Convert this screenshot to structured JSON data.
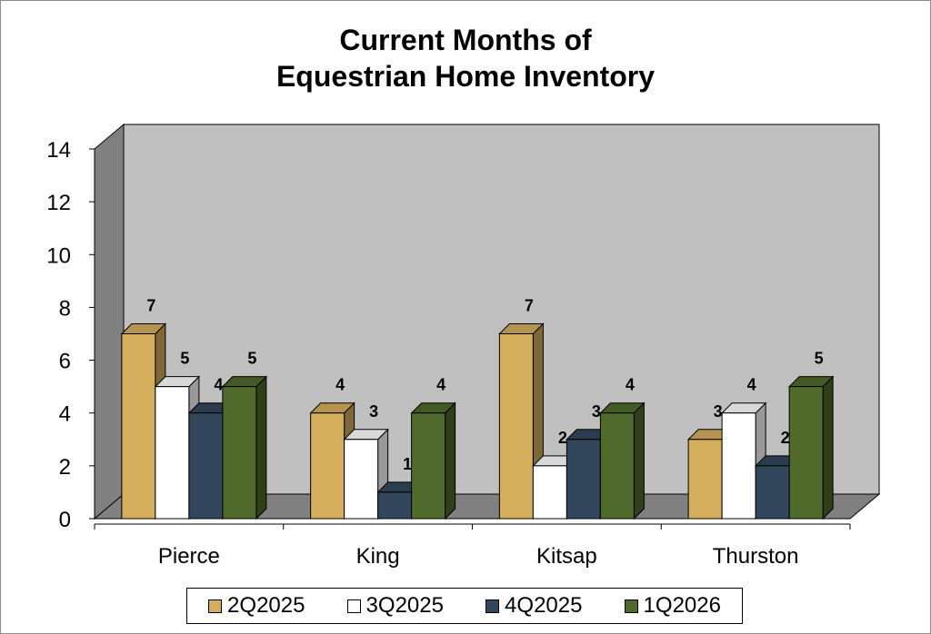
{
  "chart_data": {
    "type": "bar",
    "title_lines": [
      "Current Months of",
      "Equestrian Home Inventory"
    ],
    "categories": [
      "Pierce",
      "King",
      "Kitsap",
      "Thurston"
    ],
    "series": [
      {
        "name": "2Q2025",
        "values": [
          7,
          4,
          7,
          3
        ],
        "color": "#d4ae5c"
      },
      {
        "name": "3Q2025",
        "values": [
          5,
          3,
          2,
          4
        ],
        "color": "#ffffff"
      },
      {
        "name": "4Q2025",
        "values": [
          4,
          1,
          3,
          2
        ],
        "color": "#32475c"
      },
      {
        "name": "1Q2026",
        "values": [
          5,
          4,
          4,
          5
        ],
        "color": "#4f6a2a"
      }
    ],
    "ylim": [
      0,
      14
    ],
    "yticks": [
      "0",
      "2",
      "4",
      "6",
      "8",
      "10",
      "12",
      "14"
    ],
    "grid": false,
    "legend_position": "bottom",
    "three_d": true,
    "wall_color": "#c0c0c0"
  }
}
